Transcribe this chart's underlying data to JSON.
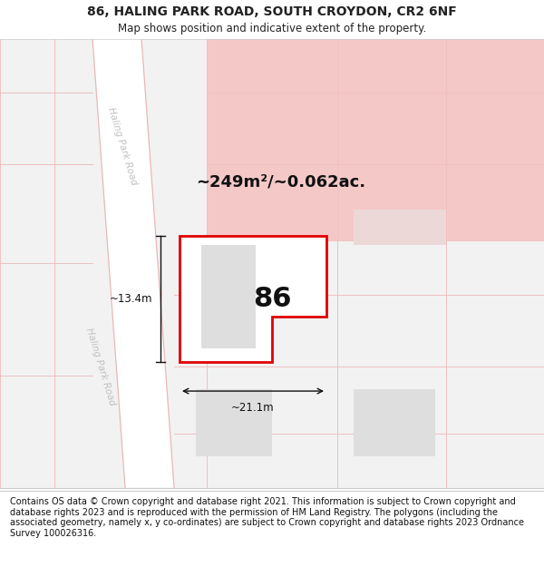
{
  "title_line1": "86, HALING PARK ROAD, SOUTH CROYDON, CR2 6NF",
  "title_line2": "Map shows position and indicative extent of the property.",
  "area_label": "~249m²/~0.062ac.",
  "house_number": "86",
  "width_label": "~21.1m",
  "height_label": "~13.4m",
  "footer_text": "Contains OS data © Crown copyright and database right 2021. This information is subject to Crown copyright and database rights 2023 and is reproduced with the permission of HM Land Registry. The polygons (including the associated geometry, namely x, y co-ordinates) are subject to Crown copyright and database rights 2023 Ordnance Survey 100026316.",
  "bg_color": "#ffffff",
  "map_bg": "#f5f5f5",
  "highlight_color": "#f5c8c8",
  "property_fill": "#ffffff",
  "property_border": "#e00000",
  "building_fill": "#dedede",
  "grid_line_color": "#f0c0c0",
  "road_fill": "#ffffff",
  "road_border": "#e8b8b8",
  "road_label_color": "#c0c0c0",
  "title_fontsize": 10,
  "subtitle_fontsize": 8.5,
  "footer_fontsize": 7.0,
  "area_fontsize": 13,
  "number_fontsize": 22,
  "dim_fontsize": 8.5
}
